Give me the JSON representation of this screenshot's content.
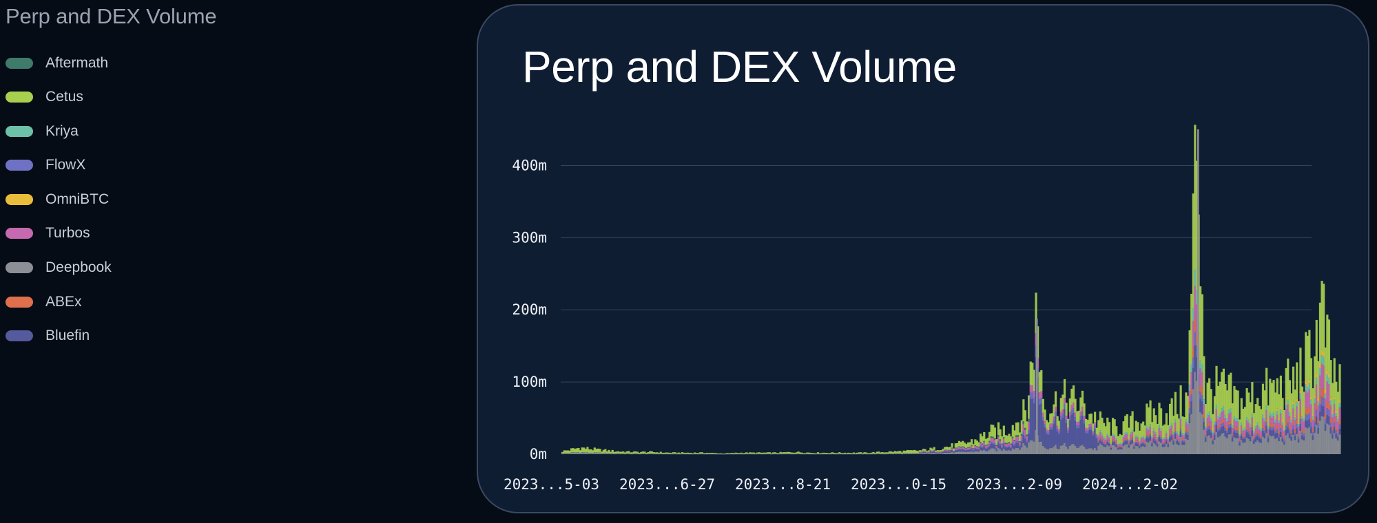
{
  "page_heading": "Perp and DEX Volume",
  "legend": [
    {
      "label": "Aftermath",
      "color": "#3f7a6b"
    },
    {
      "label": "Cetus",
      "color": "#a9cf4f"
    },
    {
      "label": "Kriya",
      "color": "#6cc1a8"
    },
    {
      "label": "FlowX",
      "color": "#6f72c4"
    },
    {
      "label": "OmniBTC",
      "color": "#e9bd3c"
    },
    {
      "label": "Turbos",
      "color": "#c569b0"
    },
    {
      "label": "Deepbook",
      "color": "#8c8f96"
    },
    {
      "label": "ABEx",
      "color": "#e0704d"
    },
    {
      "label": "Bluefin",
      "color": "#555a9e"
    }
  ],
  "chart_data": {
    "type": "bar",
    "stacked": true,
    "title": "Perp and DEX Volume",
    "xlabel": "",
    "ylabel": "",
    "y_ticks": [
      "0m",
      "100m",
      "200m",
      "300m",
      "400m"
    ],
    "ylim": [
      0,
      450
    ],
    "y_unit": "m",
    "grid": true,
    "x_tick_labels": [
      "2023...5-03",
      "2023...6-27",
      "2023...8-21",
      "2023...0-15",
      "2023...2-09",
      "2024...2-02"
    ],
    "x_range": [
      "2023-04-17",
      "2024-04-19"
    ],
    "series_names": [
      "Aftermath",
      "Cetus",
      "Kriya",
      "FlowX",
      "OmniBTC",
      "Turbos",
      "Deepbook",
      "ABEx",
      "Bluefin"
    ],
    "approx_total_daily_volume_m": [
      [
        0,
        4
      ],
      [
        10,
        9
      ],
      [
        20,
        6
      ],
      [
        30,
        4
      ],
      [
        40,
        3
      ],
      [
        50,
        3
      ],
      [
        60,
        2
      ],
      [
        70,
        2
      ],
      [
        80,
        2
      ],
      [
        90,
        1
      ],
      [
        100,
        2
      ],
      [
        110,
        2
      ],
      [
        120,
        2
      ],
      [
        130,
        3
      ],
      [
        140,
        2
      ],
      [
        150,
        2
      ],
      [
        160,
        2
      ],
      [
        170,
        2
      ],
      [
        180,
        3
      ],
      [
        190,
        4
      ],
      [
        200,
        5
      ],
      [
        210,
        8
      ],
      [
        220,
        12
      ],
      [
        230,
        18
      ],
      [
        240,
        30
      ],
      [
        250,
        35
      ],
      [
        260,
        60
      ],
      [
        265,
        188
      ],
      [
        270,
        65
      ],
      [
        280,
        75
      ],
      [
        290,
        70
      ],
      [
        300,
        45
      ],
      [
        310,
        35
      ],
      [
        320,
        45
      ],
      [
        330,
        55
      ],
      [
        340,
        60
      ],
      [
        350,
        75
      ],
      [
        355,
        450
      ],
      [
        360,
        85
      ],
      [
        370,
        90
      ],
      [
        380,
        70
      ],
      [
        390,
        85
      ],
      [
        400,
        90
      ],
      [
        410,
        100
      ],
      [
        420,
        140
      ],
      [
        425,
        200
      ],
      [
        430,
        120
      ],
      [
        435,
        90
      ]
    ],
    "notable_spikes_m": [
      {
        "series": "Deepbook",
        "approx_value": 188
      },
      {
        "series": "Deepbook",
        "approx_value": 450
      }
    ]
  }
}
